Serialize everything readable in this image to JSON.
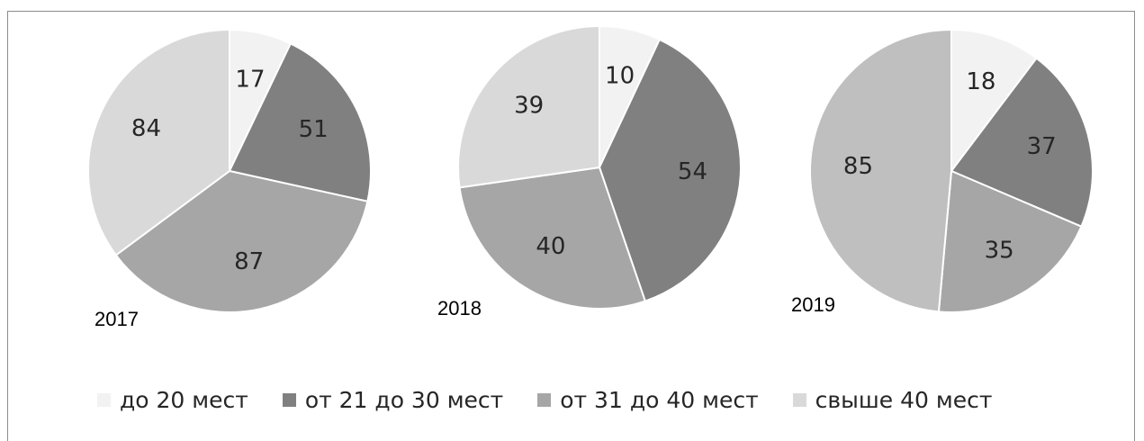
{
  "chart_data": {
    "type": "pie",
    "series": [
      {
        "name": "до 20 мест",
        "color": "#f2f2f2"
      },
      {
        "name": "от 21 до 30 мест",
        "color": "#808080"
      },
      {
        "name": "от 31 до 40 мест",
        "color": "#a6a6a6"
      },
      {
        "name": "свыше 40 мест",
        "color": "#d9d9d9"
      }
    ],
    "charts": [
      {
        "label": "2017",
        "values": [
          17,
          51,
          87,
          84
        ],
        "colors": [
          "#f2f2f2",
          "#808080",
          "#a6a6a6",
          "#d9d9d9"
        ]
      },
      {
        "label": "2018",
        "values": [
          10,
          54,
          40,
          39
        ],
        "colors": [
          "#f2f2f2",
          "#808080",
          "#a6a6a6",
          "#d9d9d9"
        ]
      },
      {
        "label": "2019",
        "values": [
          18,
          37,
          35,
          85
        ],
        "colors": [
          "#f2f2f2",
          "#808080",
          "#a6a6a6",
          "#bfbfbf"
        ]
      }
    ],
    "legend_position": "bottom"
  }
}
